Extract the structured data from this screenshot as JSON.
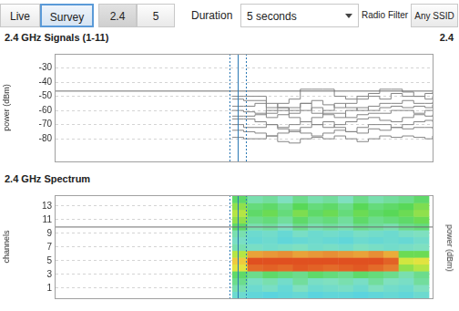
{
  "toolbar": {
    "mode_buttons": [
      {
        "label": "Live",
        "selected": false
      },
      {
        "label": "Survey",
        "selected": true
      }
    ],
    "band_buttons": [
      {
        "label": "2.4",
        "selected": true
      },
      {
        "label": "5",
        "selected": false
      }
    ],
    "duration_label": "Duration",
    "duration_value": "5 seconds",
    "filter_label": "Radio Filter",
    "filter_value": "Any SSID"
  },
  "chart_data": [
    {
      "type": "line",
      "title": "2.4 GHz Signals (1-11)",
      "band_label": "2.4",
      "y_label": "power (dBm)",
      "xlim": [
        0,
        100
      ],
      "ylim": [
        -96,
        -20
      ],
      "yticks": [
        -80,
        -70,
        -60,
        -50,
        -40,
        -30
      ],
      "grid": true,
      "tick_labels": "y",
      "line_style": "stepped",
      "threshold": -46,
      "cursor": 48.4,
      "cursor_range": [
        46.3,
        50.6
      ],
      "x": [
        47,
        50,
        53,
        56,
        59,
        62,
        65,
        68,
        71,
        74,
        77,
        80,
        83,
        86,
        89,
        92,
        95,
        98,
        100
      ],
      "series": [
        {
          "color": "#858585",
          "values": [
            -50,
            -50,
            -50,
            -58,
            -55,
            -52,
            -45,
            -45,
            -45,
            -50,
            -52,
            -50,
            -48,
            -45,
            -45,
            -47,
            -50,
            -48,
            -47
          ]
        },
        {
          "color": "#858585",
          "values": [
            -52,
            -53,
            -53,
            -55,
            -58,
            -60,
            -55,
            -53,
            -56,
            -58,
            -55,
            -52,
            -50,
            -52,
            -48,
            -50,
            -50,
            -52,
            -50
          ]
        },
        {
          "color": "#858585",
          "values": [
            -57,
            -57,
            -55,
            -62,
            -60,
            -58,
            -55,
            -62,
            -60,
            -55,
            -58,
            -60,
            -57,
            -55,
            -55,
            -53,
            -55,
            -55,
            -54
          ]
        },
        {
          "color": "#858585",
          "values": [
            -60,
            -61,
            -62,
            -65,
            -63,
            -62,
            -60,
            -58,
            -63,
            -65,
            -60,
            -58,
            -60,
            -58,
            -57,
            -58,
            -57,
            -58,
            -56
          ]
        },
        {
          "color": "#858585",
          "values": [
            -64,
            -64,
            -63,
            -60,
            -58,
            -65,
            -68,
            -65,
            -62,
            -62,
            -65,
            -63,
            -62,
            -62,
            -60,
            -60,
            -62,
            -60,
            -60
          ]
        },
        {
          "color": "#858585",
          "values": [
            -66,
            -66,
            -68,
            -70,
            -72,
            -70,
            -68,
            -70,
            -72,
            -70,
            -68,
            -66,
            -65,
            -67,
            -68,
            -65,
            -63,
            -64,
            -63
          ]
        },
        {
          "color": "#858585",
          "values": [
            -70,
            -72,
            -72,
            -70,
            -73,
            -75,
            -72,
            -70,
            -68,
            -72,
            -75,
            -72,
            -70,
            -70,
            -72,
            -70,
            -68,
            -67,
            -68
          ]
        },
        {
          "color": "#858585",
          "values": [
            -74,
            -75,
            -76,
            -78,
            -76,
            -74,
            -76,
            -78,
            -76,
            -74,
            -75,
            -76,
            -73,
            -74,
            -72,
            -73,
            -72,
            -72,
            -73
          ]
        },
        {
          "color": "#858585",
          "values": [
            -79,
            -80,
            -80,
            -78,
            -82,
            -83,
            -80,
            -79,
            -80,
            -78,
            -80,
            -82,
            -80,
            -78,
            -79,
            -78,
            -79,
            -80,
            -78
          ]
        }
      ]
    },
    {
      "type": "heatmap",
      "title": "2.4 GHz Spectrum",
      "y_label": "channels",
      "y2_label": "power (dBm)",
      "xlim": [
        0,
        100
      ],
      "ylim": [
        -0.5,
        14.6
      ],
      "yticks": [
        1,
        3,
        5,
        7,
        9,
        11,
        13
      ],
      "grid": true,
      "tick_labels": "y",
      "threshold": 10,
      "cursor": 48.4,
      "cursor_range": [
        46.3,
        50.6
      ],
      "clim": [
        -95,
        -55
      ],
      "x": [
        49,
        53,
        57,
        61,
        65,
        69,
        73,
        77,
        81,
        85,
        89,
        93,
        97
      ],
      "y": [
        0,
        1,
        2,
        3,
        4,
        5,
        6,
        7,
        8,
        9,
        10,
        11,
        12,
        13,
        14
      ],
      "cells": [
        [
          -90,
          -92,
          -93,
          -92,
          -91,
          -93,
          -92,
          -92,
          -93,
          -92,
          -91,
          -92,
          -90
        ],
        [
          -86,
          -90,
          -88,
          -91,
          -87,
          -90,
          -89,
          -88,
          -90,
          -87,
          -89,
          -90,
          -87
        ],
        [
          -84,
          -88,
          -86,
          -89,
          -85,
          -88,
          -87,
          -86,
          -88,
          -85,
          -87,
          -88,
          -85
        ],
        [
          -82,
          -84,
          -82,
          -83,
          -84,
          -82,
          -83,
          -84,
          -82,
          -83,
          -84,
          -86,
          -84
        ],
        [
          -72,
          -58,
          -57,
          -58,
          -56,
          -57,
          -58,
          -57,
          -56,
          -58,
          -60,
          -78,
          -76
        ],
        [
          -68,
          -55,
          -54,
          -55,
          -55,
          -54,
          -55,
          -54,
          -55,
          -55,
          -57,
          -74,
          -72
        ],
        [
          -76,
          -64,
          -63,
          -62,
          -64,
          -63,
          -62,
          -63,
          -64,
          -62,
          -65,
          -80,
          -80
        ],
        [
          -86,
          -88,
          -89,
          -88,
          -87,
          -89,
          -88,
          -89,
          -87,
          -88,
          -89,
          -88,
          -87
        ],
        [
          -88,
          -91,
          -90,
          -92,
          -91,
          -90,
          -91,
          -92,
          -90,
          -91,
          -90,
          -91,
          -89
        ],
        [
          -86,
          -90,
          -89,
          -91,
          -88,
          -90,
          -89,
          -90,
          -88,
          -89,
          -90,
          -88,
          -87
        ],
        [
          -82,
          -86,
          -85,
          -87,
          -84,
          -86,
          -85,
          -86,
          -84,
          -85,
          -86,
          -84,
          -83
        ],
        [
          -78,
          -84,
          -83,
          -85,
          -82,
          -84,
          -83,
          -85,
          -82,
          -84,
          -83,
          -82,
          -80
        ],
        [
          -76,
          -82,
          -80,
          -83,
          -79,
          -82,
          -80,
          -83,
          -80,
          -82,
          -81,
          -80,
          -78
        ],
        [
          -78,
          -83,
          -82,
          -84,
          -81,
          -83,
          -82,
          -84,
          -81,
          -83,
          -82,
          -81,
          -79
        ],
        [
          -82,
          -86,
          -85,
          -87,
          -84,
          -86,
          -85,
          -87,
          -84,
          -86,
          -85,
          -84,
          -82
        ]
      ]
    }
  ]
}
